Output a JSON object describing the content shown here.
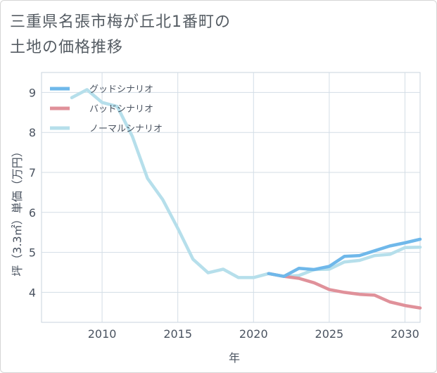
{
  "title_lines": [
    "三重県名張市梅が丘北1番町の",
    "土地の価格推移"
  ],
  "chart_data": {
    "type": "line",
    "title": "三重県名張市梅が丘北1番町の土地の価格推移",
    "xlabel": "年",
    "ylabel": "坪（3.3㎡）単価（万円）",
    "xlim": [
      2006,
      2031
    ],
    "ylim": [
      3.25,
      9.5
    ],
    "xticks": [
      2010,
      2015,
      2020,
      2025,
      2030
    ],
    "yticks": [
      4,
      5,
      6,
      7,
      8,
      9
    ],
    "grid": true,
    "legend_position": "top-left",
    "series": [
      {
        "name": "グッドシナリオ",
        "color": "#6fb8ea",
        "x": [
          2021,
          2022,
          2023,
          2024,
          2025,
          2026,
          2027,
          2028,
          2029,
          2030,
          2031
        ],
        "y": [
          4.47,
          4.4,
          4.6,
          4.57,
          4.65,
          4.9,
          4.92,
          5.04,
          5.16,
          5.24,
          5.33
        ]
      },
      {
        "name": "バッドシナリオ",
        "color": "#e0919a",
        "x": [
          2021,
          2022,
          2023,
          2024,
          2025,
          2026,
          2027,
          2028,
          2029,
          2030,
          2031
        ],
        "y": [
          4.47,
          4.4,
          4.35,
          4.24,
          4.07,
          4.0,
          3.95,
          3.93,
          3.76,
          3.67,
          3.61
        ]
      },
      {
        "name": "ノーマルシナリオ",
        "color": "#b6dfeb",
        "x": [
          2008,
          2009,
          2010,
          2011,
          2012,
          2013,
          2014,
          2015,
          2016,
          2017,
          2018,
          2019,
          2020,
          2021,
          2022,
          2023,
          2024,
          2025,
          2026,
          2027,
          2028,
          2029,
          2030,
          2031
        ],
        "y": [
          8.87,
          9.07,
          8.75,
          8.65,
          7.9,
          6.85,
          6.32,
          5.6,
          4.83,
          4.49,
          4.58,
          4.37,
          4.37,
          4.47,
          4.4,
          4.42,
          4.57,
          4.58,
          4.76,
          4.8,
          4.92,
          4.95,
          5.12,
          5.13
        ]
      }
    ]
  }
}
